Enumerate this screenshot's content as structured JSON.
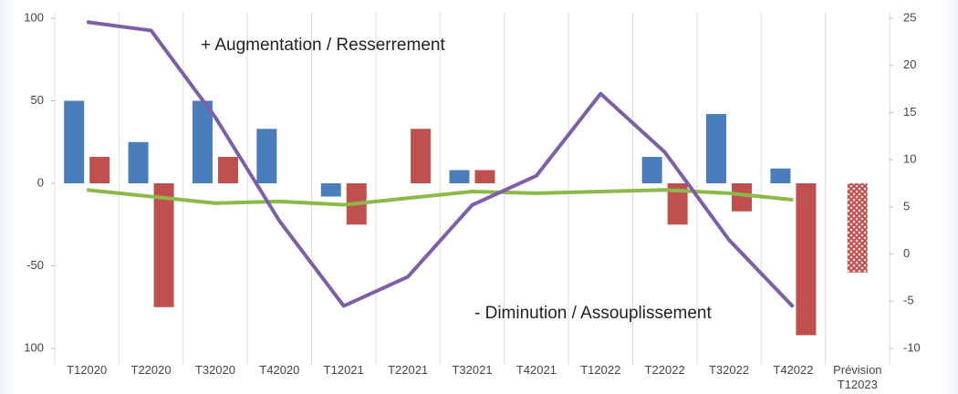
{
  "chart_data": {
    "type": "bar",
    "categories": [
      "T12020",
      "T22020",
      "T32020",
      "T42020",
      "T12021",
      "T22021",
      "T32021",
      "T42021",
      "T12022",
      "T22022",
      "T32022",
      "T42022",
      "Prévision T12023"
    ],
    "ylim": [
      -100,
      100
    ],
    "yticks": [
      100,
      50,
      0,
      -50,
      {
        "value": -100,
        "label": "100"
      }
    ],
    "y2lim": [
      -10,
      25
    ],
    "y2ticks": [
      25,
      20,
      15,
      10,
      5,
      0,
      -5,
      -10
    ],
    "annotations": [
      "+ Augmentation / Resserrement",
      "- Diminution / Assouplissement"
    ],
    "series": [
      {
        "type": "bar",
        "color": "#4a7ebb",
        "values": [
          50,
          25,
          50,
          33,
          -8,
          null,
          8,
          null,
          null,
          16,
          42,
          9,
          null
        ]
      },
      {
        "type": "bar",
        "color": "#c0504d",
        "hatched_categories": [
          12
        ],
        "values": [
          16,
          -75,
          16,
          null,
          -25,
          33,
          8,
          null,
          null,
          -25,
          -17,
          -92,
          -54
        ]
      },
      {
        "type": "line",
        "color": "#8db84a",
        "values": [
          -4,
          -8,
          -12,
          -11,
          -13,
          -9,
          -5,
          -6,
          -5,
          -4,
          -6,
          -10,
          null
        ]
      },
      {
        "type": "line",
        "color": "#7e5fa6",
        "axis": "y2",
        "values": [
          24.6,
          23.7,
          14.5,
          3.5,
          -5.5,
          -2.4,
          5.2,
          8.3,
          17,
          10.8,
          1.5,
          -5.6,
          null
        ]
      }
    ]
  }
}
